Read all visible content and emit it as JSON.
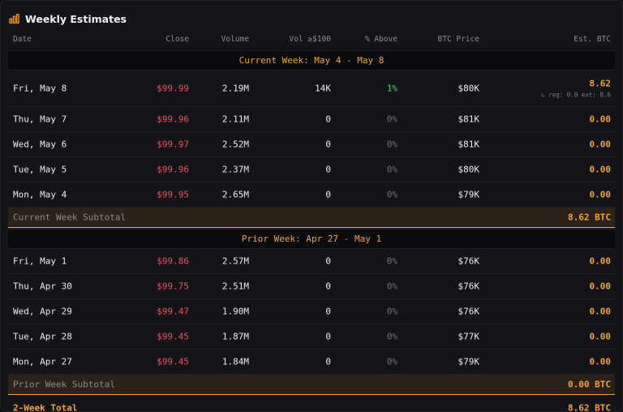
{
  "header": {
    "title": "Weekly Estimates",
    "icon": "bar-chart-icon"
  },
  "columns": {
    "date": "Date",
    "close": "Close",
    "volume": "Volume",
    "vol100": "Vol ≥$100",
    "above": "% Above",
    "btc_price": "BTC Price",
    "est_btc": "Est. BTC"
  },
  "current_week": {
    "label": "Current Week: May 4 - May 8",
    "rows": [
      {
        "date": "Fri, May 8",
        "close": "$99.99",
        "volume": "2.19M",
        "vol100": "14K",
        "above": "1%",
        "btc_price": "$80K",
        "est": "8.62",
        "est_sub": "↳ reg: 0.0 ext: 8.6"
      },
      {
        "date": "Thu, May 7",
        "close": "$99.96",
        "volume": "2.11M",
        "vol100": "0",
        "above": "0%",
        "btc_price": "$81K",
        "est": "0.00"
      },
      {
        "date": "Wed, May 6",
        "close": "$99.97",
        "volume": "2.52M",
        "vol100": "0",
        "above": "0%",
        "btc_price": "$81K",
        "est": "0.00"
      },
      {
        "date": "Tue, May 5",
        "close": "$99.96",
        "volume": "2.37M",
        "vol100": "0",
        "above": "0%",
        "btc_price": "$80K",
        "est": "0.00"
      },
      {
        "date": "Mon, May 4",
        "close": "$99.95",
        "volume": "2.65M",
        "vol100": "0",
        "above": "0%",
        "btc_price": "$79K",
        "est": "0.00"
      }
    ],
    "subtotal_label": "Current Week Subtotal",
    "subtotal_value": "8.62 BTC"
  },
  "prior_week": {
    "label": "Prior Week: Apr 27 - May 1",
    "rows": [
      {
        "date": "Fri, May 1",
        "close": "$99.86",
        "volume": "2.57M",
        "vol100": "0",
        "above": "0%",
        "btc_price": "$76K",
        "est": "0.00"
      },
      {
        "date": "Thu, Apr 30",
        "close": "$99.75",
        "volume": "2.51M",
        "vol100": "0",
        "above": "0%",
        "btc_price": "$76K",
        "est": "0.00"
      },
      {
        "date": "Wed, Apr 29",
        "close": "$99.47",
        "volume": "1.90M",
        "vol100": "0",
        "above": "0%",
        "btc_price": "$76K",
        "est": "0.00"
      },
      {
        "date": "Tue, Apr 28",
        "close": "$99.45",
        "volume": "1.87M",
        "vol100": "0",
        "above": "0%",
        "btc_price": "$77K",
        "est": "0.00"
      },
      {
        "date": "Mon, Apr 27",
        "close": "$99.45",
        "volume": "1.84M",
        "vol100": "0",
        "above": "0%",
        "btc_price": "$79K",
        "est": "0.00"
      }
    ],
    "subtotal_label": "Prior Week Subtotal",
    "subtotal_value": "0.00 BTC"
  },
  "total": {
    "label": "2-Week Total",
    "value": "8.62 BTC"
  },
  "colors": {
    "accent": "#f0a23a",
    "negative": "#e8525f",
    "positive": "#3ed67a"
  }
}
